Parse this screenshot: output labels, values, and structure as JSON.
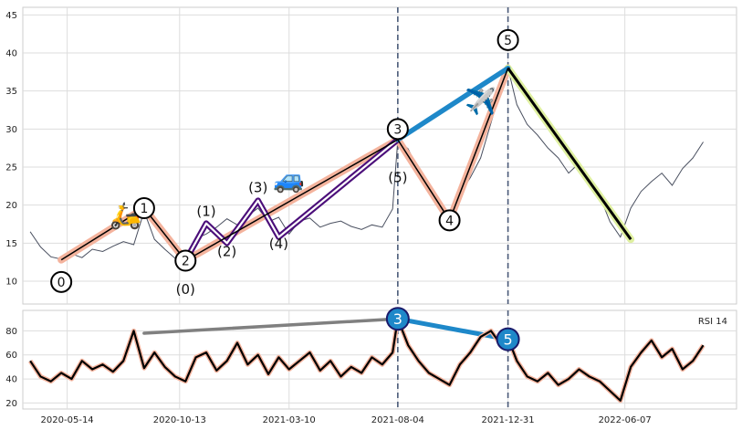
{
  "chart_data": [
    {
      "type": "line",
      "panel": "price",
      "title": "",
      "xlabel": "",
      "ylabel": "",
      "x_ticks": [
        "2020-05-14",
        "2020-10-13",
        "2021-03-10",
        "2021-08-04",
        "2021-12-31",
        "2022-06-07"
      ],
      "ylim": [
        7,
        46
      ],
      "y_ticks": [
        10,
        15,
        20,
        25,
        30,
        35,
        40,
        45
      ],
      "grid": true,
      "series": [
        {
          "color": "#4a5060",
          "x": [
            "2020-03-25",
            "2020-04-08",
            "2020-04-22",
            "2020-05-06",
            "2020-05-20",
            "2020-06-03",
            "2020-06-17",
            "2020-07-01",
            "2020-07-15",
            "2020-07-29",
            "2020-08-12",
            "2020-08-26",
            "2020-09-09",
            "2020-09-23",
            "2020-10-07",
            "2020-10-21",
            "2020-11-04",
            "2020-11-18",
            "2020-12-02",
            "2020-12-16",
            "2020-12-30",
            "2021-01-13",
            "2021-01-27",
            "2021-02-10",
            "2021-02-24",
            "2021-03-10",
            "2021-03-24",
            "2021-04-07",
            "2021-04-21",
            "2021-05-05",
            "2021-05-19",
            "2021-06-02",
            "2021-06-16",
            "2021-06-30",
            "2021-07-14",
            "2021-07-28",
            "2021-08-04",
            "2021-08-18",
            "2021-09-01",
            "2021-09-15",
            "2021-09-29",
            "2021-10-13",
            "2021-10-27",
            "2021-11-10",
            "2021-11-24",
            "2021-12-08",
            "2021-12-22",
            "2021-12-31",
            "2022-01-12",
            "2022-01-26",
            "2022-02-09",
            "2022-02-23",
            "2022-03-09",
            "2022-03-23",
            "2022-04-06",
            "2022-04-20",
            "2022-05-04",
            "2022-05-18",
            "2022-06-01",
            "2022-06-15",
            "2022-06-29",
            "2022-07-13",
            "2022-07-27",
            "2022-08-10",
            "2022-08-24",
            "2022-09-07",
            "2022-09-21"
          ],
          "values": [
            16.5,
            14.5,
            13.2,
            12.9,
            13.6,
            13.1,
            14.2,
            13.9,
            14.6,
            15.2,
            14.8,
            19.2,
            15.5,
            14.2,
            13.0,
            13.3,
            15.6,
            16.2,
            17.1,
            18.2,
            17.4,
            18.6,
            19.6,
            17.8,
            18.4,
            16.2,
            17.9,
            18.3,
            17.1,
            17.6,
            17.9,
            17.2,
            16.8,
            17.4,
            17.1,
            19.5,
            28.6,
            27.4,
            24.5,
            22.8,
            20.5,
            18.8,
            21.5,
            23.6,
            26.2,
            30.8,
            35.6,
            38.0,
            33.2,
            30.6,
            29.2,
            27.5,
            26.2,
            24.2,
            25.5,
            23.4,
            21.2,
            17.8,
            15.8,
            19.6,
            21.8,
            23.1,
            24.2,
            22.6,
            24.8,
            26.2,
            28.3
          ]
        }
      ],
      "wave_lines": [
        {
          "name": "zigzag-primary",
          "color": "#000000",
          "points": [
            [
              "2020-05-06",
              12.8
            ],
            [
              "2020-08-26",
              19.6
            ],
            [
              "2020-10-21",
              12.7
            ],
            [
              "2021-08-04",
              28.6
            ],
            [
              "2021-10-13",
              18.0
            ],
            [
              "2021-12-31",
              38.0
            ],
            [
              "2022-06-15",
              15.5
            ]
          ]
        },
        {
          "name": "zigzag-salmon",
          "color": "#f4b39d",
          "points": [
            [
              "2020-05-06",
              12.8
            ],
            [
              "2020-08-26",
              19.6
            ],
            [
              "2020-10-21",
              12.7
            ],
            [
              "2021-08-04",
              28.6
            ],
            [
              "2021-10-13",
              18.0
            ],
            [
              "2021-12-31",
              38.0
            ]
          ]
        },
        {
          "name": "sub-wave-purple",
          "color": "#4b0e7a",
          "points": [
            [
              "2020-10-21",
              12.7
            ],
            [
              "2020-11-18",
              17.6
            ],
            [
              "2020-12-16",
              15.0
            ],
            [
              "2021-01-27",
              20.6
            ],
            [
              "2021-02-24",
              15.8
            ],
            [
              "2021-08-04",
              28.6
            ]
          ]
        },
        {
          "name": "projection-blue",
          "color": "#1e88c9",
          "points": [
            [
              "2021-08-04",
              28.6
            ],
            [
              "2021-12-31",
              38.0
            ]
          ]
        },
        {
          "name": "wave-five-highlight",
          "color": "#dff0a0",
          "points": [
            [
              "2021-12-31",
              38.0
            ],
            [
              "2022-06-15",
              15.5
            ]
          ]
        }
      ],
      "wave_labels": [
        {
          "text": "0",
          "x": "2020-05-06",
          "y": 9.9,
          "circled": true
        },
        {
          "text": "1",
          "x": "2020-08-26",
          "y": 19.6,
          "circled": true
        },
        {
          "text": "2",
          "x": "2020-10-21",
          "y": 12.7,
          "circled": true
        },
        {
          "text": "3",
          "x": "2021-08-04",
          "y": 30.0,
          "circled": true
        },
        {
          "text": "4",
          "x": "2021-10-13",
          "y": 18.0,
          "circled": true
        },
        {
          "text": "5",
          "x": "2021-12-31",
          "y": 41.7,
          "circled": true
        },
        {
          "text": "(0)",
          "x": "2020-10-21",
          "y": 8.9,
          "circled": false
        },
        {
          "text": "(1)",
          "x": "2020-11-18",
          "y": 19.2,
          "circled": false
        },
        {
          "text": "(2)",
          "x": "2020-12-16",
          "y": 13.9,
          "circled": false
        },
        {
          "text": "(3)",
          "x": "2021-01-27",
          "y": 22.3,
          "circled": false
        },
        {
          "text": "(4)",
          "x": "2021-02-24",
          "y": 14.9,
          "circled": false
        },
        {
          "text": "(5)",
          "x": "2021-08-04",
          "y": 23.6,
          "circled": false
        }
      ],
      "vlines": [
        "2021-08-04",
        "2021-12-31"
      ],
      "icons": [
        {
          "name": "scooter-icon",
          "glyph": "🛵",
          "x": "2020-08-01",
          "y": 17.5
        },
        {
          "name": "car-icon",
          "glyph": "🚙",
          "x": "2021-03-10",
          "y": 22.3
        },
        {
          "name": "airplane-icon",
          "glyph": "✈️",
          "x": "2021-11-24",
          "y": 32.5
        }
      ]
    },
    {
      "type": "line",
      "panel": "rsi",
      "title": "",
      "legend": "RSI 14",
      "legend_position": "top-right",
      "ylim": [
        15,
        97
      ],
      "y_ticks": [
        20,
        40,
        60,
        80
      ],
      "grid": true,
      "series": [
        {
          "name": "RSI 14",
          "color": "#000000",
          "x": [
            "2020-03-25",
            "2020-04-08",
            "2020-04-22",
            "2020-05-06",
            "2020-05-20",
            "2020-06-03",
            "2020-06-17",
            "2020-07-01",
            "2020-07-15",
            "2020-07-29",
            "2020-08-12",
            "2020-08-26",
            "2020-09-09",
            "2020-09-23",
            "2020-10-07",
            "2020-10-21",
            "2020-11-04",
            "2020-11-18",
            "2020-12-02",
            "2020-12-16",
            "2020-12-30",
            "2021-01-13",
            "2021-01-27",
            "2021-02-10",
            "2021-02-24",
            "2021-03-10",
            "2021-03-24",
            "2021-04-07",
            "2021-04-21",
            "2021-05-05",
            "2021-05-19",
            "2021-06-02",
            "2021-06-16",
            "2021-06-30",
            "2021-07-14",
            "2021-07-28",
            "2021-08-04",
            "2021-08-18",
            "2021-09-01",
            "2021-09-15",
            "2021-09-29",
            "2021-10-13",
            "2021-10-27",
            "2021-11-10",
            "2021-11-24",
            "2021-12-08",
            "2021-12-22",
            "2021-12-31",
            "2022-01-12",
            "2022-01-26",
            "2022-02-09",
            "2022-02-23",
            "2022-03-09",
            "2022-03-23",
            "2022-04-06",
            "2022-04-20",
            "2022-05-04",
            "2022-05-18",
            "2022-06-01",
            "2022-06-15",
            "2022-06-29",
            "2022-07-13",
            "2022-07-27",
            "2022-08-10",
            "2022-08-24",
            "2022-09-07",
            "2022-09-21"
          ],
          "values": [
            55,
            42,
            38,
            45,
            40,
            55,
            48,
            52,
            46,
            55,
            80,
            49,
            62,
            50,
            42,
            38,
            58,
            62,
            47,
            55,
            70,
            52,
            60,
            44,
            58,
            48,
            55,
            62,
            47,
            55,
            42,
            50,
            45,
            58,
            52,
            62,
            90,
            68,
            55,
            45,
            40,
            35,
            52,
            62,
            75,
            80,
            68,
            74,
            55,
            42,
            38,
            45,
            35,
            40,
            48,
            42,
            38,
            30,
            22,
            50,
            62,
            72,
            58,
            65,
            48,
            55,
            68
          ]
        }
      ],
      "divergence_lines": [
        {
          "name": "rsi-divergence-gray",
          "color": "#808080",
          "points": [
            [
              "2020-08-26",
              78
            ],
            [
              "2021-08-04",
              90
            ]
          ]
        },
        {
          "name": "rsi-divergence-blue",
          "color": "#1e88c9",
          "points": [
            [
              "2021-08-04",
              90
            ],
            [
              "2021-12-31",
              73
            ]
          ]
        }
      ],
      "markers": [
        {
          "text": "3",
          "x": "2021-08-04",
          "y": 90
        },
        {
          "text": "5",
          "x": "2021-12-31",
          "y": 73
        }
      ]
    }
  ]
}
